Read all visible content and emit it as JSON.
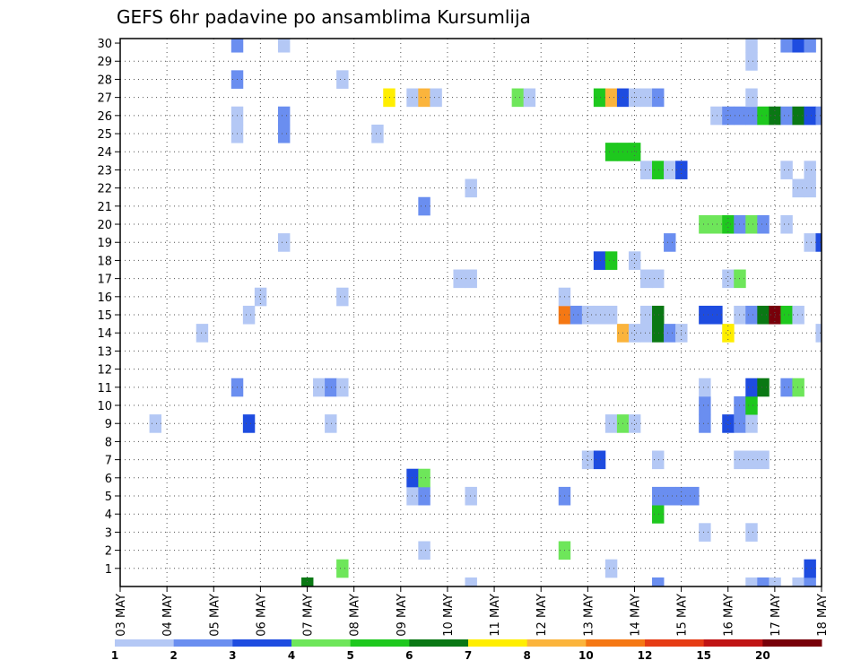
{
  "chart_data": {
    "type": "heatmap",
    "title": "GEFS 6hr padavine po ansamblima Kursumlija",
    "xlabel": "",
    "ylabel": "",
    "x_tick_labels": [
      "03 MAY",
      "04 MAY",
      "05 MAY",
      "06 MAY",
      "07 MAY",
      "08 MAY",
      "09 MAY",
      "10 MAY",
      "11 MAY",
      "12 MAY",
      "13 MAY",
      "14 MAY",
      "15 MAY",
      "16 MAY",
      "17 MAY",
      "18 MAY"
    ],
    "y_tick_labels": [
      "1",
      "2",
      "3",
      "4",
      "5",
      "6",
      "7",
      "8",
      "9",
      "10",
      "11",
      "12",
      "13",
      "14",
      "15",
      "16",
      "17",
      "18",
      "19",
      "20",
      "21",
      "22",
      "23",
      "24",
      "25",
      "26",
      "27",
      "28",
      "29",
      "30"
    ],
    "xlim": [
      0,
      60
    ],
    "ylim": [
      0,
      30
    ],
    "x_unit": "6-hour step from 03 MAY 00Z",
    "y_unit": "ensemble member",
    "grid": true,
    "legend_position": "bottom",
    "colorbar_labels": [
      "1",
      "2",
      "3",
      "4",
      "5",
      "6",
      "7",
      "8",
      "10",
      "12",
      "15",
      "20"
    ],
    "color_scale": [
      {
        "min": 1,
        "color": "#b4c8f5"
      },
      {
        "min": 2,
        "color": "#6a8ef0"
      },
      {
        "min": 3,
        "color": "#1e4ce0"
      },
      {
        "min": 4,
        "color": "#6ee65a"
      },
      {
        "min": 5,
        "color": "#1ec81e"
      },
      {
        "min": 6,
        "color": "#0a7814"
      },
      {
        "min": 7,
        "color": "#ffee00"
      },
      {
        "min": 8,
        "color": "#fbb43c"
      },
      {
        "min": 10,
        "color": "#f57814"
      },
      {
        "min": 12,
        "color": "#e63c14"
      },
      {
        "min": 15,
        "color": "#c01414"
      },
      {
        "min": 20,
        "color": "#78000a"
      }
    ],
    "cells_note": "each row: [time_step, member, precipitation_class_lower_bound_mm]",
    "cells": [
      [
        16,
        0,
        6
      ],
      [
        30,
        0,
        1
      ],
      [
        46,
        0,
        2
      ],
      [
        54,
        0,
        1
      ],
      [
        55,
        0,
        2
      ],
      [
        56,
        0,
        1
      ],
      [
        58,
        0,
        1
      ],
      [
        59,
        0,
        2
      ],
      [
        19,
        1,
        4
      ],
      [
        42,
        1,
        1
      ],
      [
        59,
        1,
        3
      ],
      [
        26,
        2,
        1
      ],
      [
        38,
        2,
        4
      ],
      [
        50,
        3,
        1
      ],
      [
        54,
        3,
        1
      ],
      [
        46,
        4,
        5
      ],
      [
        25,
        5,
        1
      ],
      [
        26,
        5,
        2
      ],
      [
        30,
        5,
        1
      ],
      [
        38,
        5,
        2
      ],
      [
        46,
        5,
        2
      ],
      [
        47,
        5,
        2
      ],
      [
        48,
        5,
        2
      ],
      [
        49,
        5,
        2
      ],
      [
        25,
        6,
        3
      ],
      [
        26,
        6,
        4
      ],
      [
        40,
        7,
        1
      ],
      [
        41,
        7,
        3
      ],
      [
        46,
        7,
        1
      ],
      [
        53,
        7,
        1
      ],
      [
        54,
        7,
        1
      ],
      [
        55,
        7,
        1
      ],
      [
        3,
        9,
        1
      ],
      [
        11,
        9,
        3
      ],
      [
        18,
        9,
        1
      ],
      [
        42,
        9,
        1
      ],
      [
        43,
        9,
        4
      ],
      [
        44,
        9,
        1
      ],
      [
        50,
        9,
        2
      ],
      [
        52,
        9,
        3
      ],
      [
        53,
        9,
        2
      ],
      [
        54,
        9,
        1
      ],
      [
        50,
        10,
        2
      ],
      [
        53,
        10,
        2
      ],
      [
        54,
        10,
        5
      ],
      [
        10,
        11,
        2
      ],
      [
        17,
        11,
        1
      ],
      [
        18,
        11,
        2
      ],
      [
        19,
        11,
        1
      ],
      [
        50,
        11,
        1
      ],
      [
        54,
        11,
        3
      ],
      [
        55,
        11,
        6
      ],
      [
        57,
        11,
        2
      ],
      [
        58,
        11,
        4
      ],
      [
        7,
        14,
        1
      ],
      [
        43,
        14,
        8
      ],
      [
        44,
        14,
        1
      ],
      [
        45,
        14,
        1
      ],
      [
        46,
        14,
        6
      ],
      [
        47,
        14,
        2
      ],
      [
        48,
        14,
        1
      ],
      [
        52,
        14,
        7
      ],
      [
        60,
        14,
        1
      ],
      [
        11,
        15,
        1
      ],
      [
        38,
        15,
        10
      ],
      [
        39,
        15,
        2
      ],
      [
        40,
        15,
        1
      ],
      [
        41,
        15,
        1
      ],
      [
        42,
        15,
        1
      ],
      [
        45,
        15,
        1
      ],
      [
        46,
        15,
        6
      ],
      [
        50,
        15,
        3
      ],
      [
        51,
        15,
        3
      ],
      [
        53,
        15,
        1
      ],
      [
        54,
        15,
        2
      ],
      [
        55,
        15,
        6
      ],
      [
        56,
        15,
        20
      ],
      [
        57,
        15,
        5
      ],
      [
        58,
        15,
        1
      ],
      [
        12,
        16,
        1
      ],
      [
        19,
        16,
        1
      ],
      [
        38,
        16,
        1
      ],
      [
        29,
        17,
        1
      ],
      [
        30,
        17,
        1
      ],
      [
        45,
        17,
        1
      ],
      [
        46,
        17,
        1
      ],
      [
        52,
        17,
        1
      ],
      [
        53,
        17,
        4
      ],
      [
        41,
        18,
        3
      ],
      [
        42,
        18,
        5
      ],
      [
        44,
        18,
        1
      ],
      [
        14,
        19,
        1
      ],
      [
        47,
        19,
        2
      ],
      [
        59,
        19,
        1
      ],
      [
        60,
        19,
        3
      ],
      [
        50,
        20,
        4
      ],
      [
        51,
        20,
        4
      ],
      [
        52,
        20,
        5
      ],
      [
        53,
        20,
        2
      ],
      [
        54,
        20,
        4
      ],
      [
        55,
        20,
        2
      ],
      [
        57,
        20,
        1
      ],
      [
        26,
        21,
        2
      ],
      [
        30,
        22,
        1
      ],
      [
        58,
        22,
        1
      ],
      [
        59,
        22,
        1
      ],
      [
        45,
        23,
        1
      ],
      [
        46,
        23,
        5
      ],
      [
        47,
        23,
        1
      ],
      [
        48,
        23,
        3
      ],
      [
        57,
        23,
        1
      ],
      [
        59,
        23,
        1
      ],
      [
        42,
        24,
        5
      ],
      [
        43,
        24,
        5
      ],
      [
        44,
        24,
        5
      ],
      [
        10,
        25,
        1
      ],
      [
        14,
        25,
        2
      ],
      [
        22,
        25,
        1
      ],
      [
        10,
        26,
        1
      ],
      [
        14,
        26,
        2
      ],
      [
        51,
        26,
        1
      ],
      [
        52,
        26,
        2
      ],
      [
        53,
        26,
        2
      ],
      [
        54,
        26,
        2
      ],
      [
        55,
        26,
        5
      ],
      [
        56,
        26,
        6
      ],
      [
        57,
        26,
        2
      ],
      [
        58,
        26,
        6
      ],
      [
        59,
        26,
        3
      ],
      [
        60,
        26,
        2
      ],
      [
        23,
        27,
        7
      ],
      [
        25,
        27,
        1
      ],
      [
        26,
        27,
        8
      ],
      [
        27,
        27,
        1
      ],
      [
        34,
        27,
        4
      ],
      [
        35,
        27,
        1
      ],
      [
        41,
        27,
        5
      ],
      [
        42,
        27,
        8
      ],
      [
        43,
        27,
        3
      ],
      [
        44,
        27,
        1
      ],
      [
        45,
        27,
        1
      ],
      [
        46,
        27,
        2
      ],
      [
        54,
        27,
        1
      ],
      [
        10,
        28,
        2
      ],
      [
        19,
        28,
        1
      ],
      [
        54,
        29,
        1
      ],
      [
        10,
        30,
        2
      ],
      [
        14,
        30,
        1
      ],
      [
        54,
        30,
        1
      ],
      [
        57,
        30,
        2
      ],
      [
        58,
        30,
        3
      ],
      [
        59,
        30,
        2
      ],
      [
        10,
        31,
        1
      ],
      [
        11,
        31,
        1
      ],
      [
        20,
        31,
        1
      ],
      [
        22,
        31,
        1
      ],
      [
        23,
        31,
        3
      ],
      [
        53,
        31,
        2
      ],
      [
        54,
        31,
        2
      ],
      [
        55,
        31,
        2
      ],
      [
        56,
        31,
        2
      ],
      [
        57,
        31,
        10
      ],
      [
        58,
        31,
        1
      ],
      [
        19,
        32,
        1
      ],
      [
        46,
        32,
        3
      ],
      [
        47,
        32,
        1
      ],
      [
        54,
        32,
        2
      ],
      [
        57,
        32,
        2
      ],
      [
        58,
        32,
        3
      ],
      [
        59,
        32,
        6
      ]
    ]
  }
}
